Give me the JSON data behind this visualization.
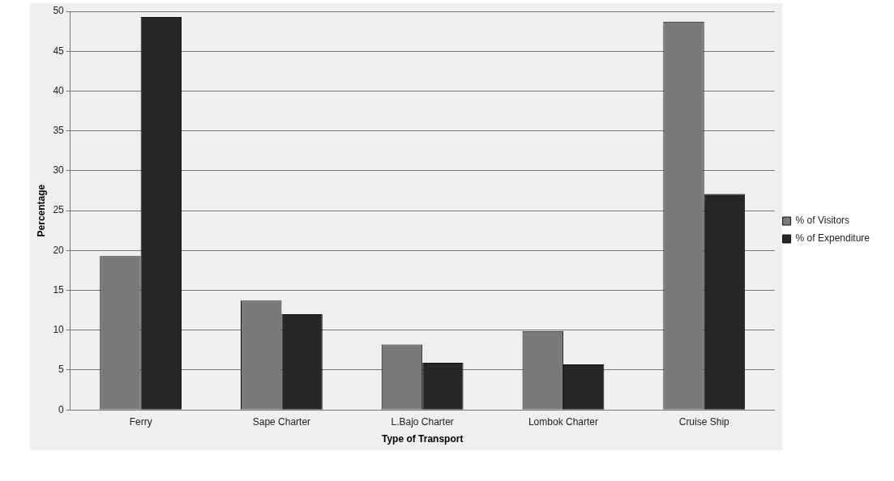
{
  "chart_data": {
    "type": "bar",
    "xlabel": "Type of Transport",
    "ylabel": "Percentage",
    "categories": [
      "Ferry",
      "Sape Charter",
      "L.Bajo Charter",
      "Lombok Charter",
      "Cruise Ship"
    ],
    "series": [
      {
        "name": "% of Visitors",
        "color": "#7a7a7a",
        "values": [
          19.3,
          13.7,
          8.2,
          9.9,
          48.7
        ]
      },
      {
        "name": "% of Expenditure",
        "color": "#262626",
        "values": [
          49.3,
          12.0,
          5.9,
          5.7,
          27.1
        ]
      }
    ],
    "ylim": [
      0,
      50
    ],
    "yticks": [
      0,
      5,
      10,
      15,
      20,
      25,
      30,
      35,
      40,
      45,
      50
    ],
    "grid": "y",
    "legend": "right"
  }
}
